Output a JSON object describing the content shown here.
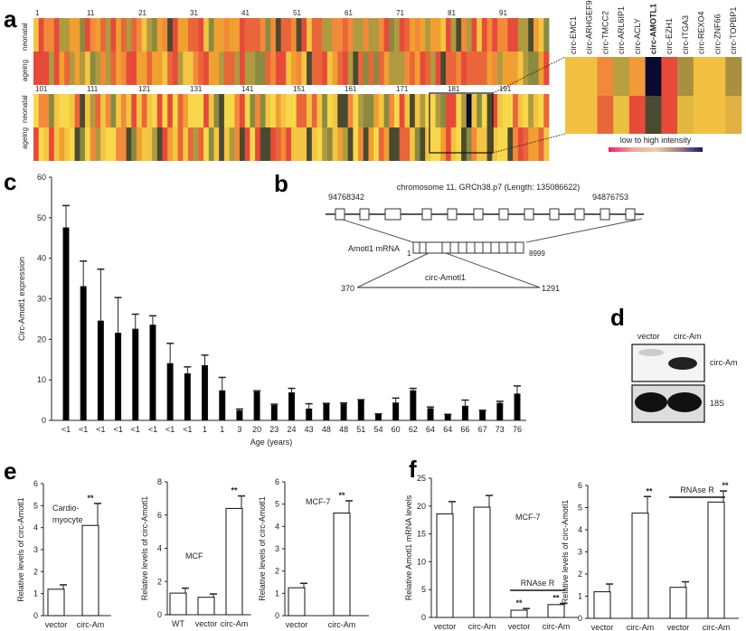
{
  "panel_labels": {
    "a": "a",
    "b": "b",
    "c": "c",
    "d": "d",
    "e": "e",
    "f": "f"
  },
  "heatmap": {
    "row_labels": [
      "neonatal",
      "ageing"
    ],
    "top_ticks": [
      "1",
      "11",
      "21",
      "31",
      "41",
      "51",
      "61",
      "71",
      "81",
      "91"
    ],
    "bottom_ticks": [
      "101",
      "111",
      "121",
      "131",
      "141",
      "151",
      "161",
      "171",
      "181",
      "191"
    ],
    "palette": [
      "#f4c542",
      "#f0a030",
      "#e8663a",
      "#e84a3a",
      "#b09a40",
      "#8a8a40",
      "#4a4a30",
      "#f7d84a",
      "#f28a3a"
    ],
    "zoom_columns": [
      "circ-EMC1",
      "circ-ARHGEF9",
      "circ-TMCC2",
      "circ-ARL6IP1",
      "circ-ACLY",
      "circ-AMOTL1",
      "circ-EZH1",
      "circ-ITGA3",
      "circ-REXO4",
      "circ-ZNF66",
      "circ-TOPBP1"
    ],
    "zoom_highlight": "circ-AMOTL1",
    "zoom_colors_neonatal": [
      "#f2c040",
      "#f2c040",
      "#f08a3a",
      "#b8a040",
      "#f09a3a",
      "#0a0a30",
      "#e84a38",
      "#a89040",
      "#f2c040",
      "#f2c040",
      "#a89040"
    ],
    "zoom_colors_ageing": [
      "#f2c040",
      "#f2c040",
      "#e8663a",
      "#e8c040",
      "#e84a38",
      "#4a4a30",
      "#e84a38",
      "#e0b840",
      "#f2c040",
      "#f2c040",
      "#e0b040"
    ],
    "legend_label": "low to high intensity",
    "legend_colors": [
      "#e8206a",
      "#f0a0a0",
      "#f0d0a0",
      "#a08080",
      "#201870"
    ]
  },
  "gene_diagram": {
    "title": "chromosome 11, GRCh38.p7 (Length: 135086622)",
    "start": "94768342",
    "end": "94876753",
    "mrna_label": "Amotl1 mRNA",
    "mrna_start": "1",
    "mrna_end": "8999",
    "circ_label": "circ-Amotl1",
    "circ_start": "370",
    "circ_end": "1291"
  },
  "blot": {
    "lanes": [
      "vector",
      "circ-Am"
    ],
    "bands": [
      "circ-Am",
      "18S"
    ]
  },
  "chart_data": [
    {
      "id": "c",
      "type": "bar",
      "xlabel": "Age (years)",
      "ylabel": "Circ-Amotl1 expression",
      "ylim": [
        0,
        60
      ],
      "yticks": [
        "0",
        "10",
        "20",
        "30",
        "40",
        "50",
        "60"
      ],
      "categories": [
        "<1",
        "<1",
        "<1",
        "<1",
        "<1",
        "<1",
        "<1",
        "<1",
        "1",
        "1",
        "3",
        "20",
        "23",
        "24",
        "43",
        "48",
        "48",
        "51",
        "54",
        "60",
        "62",
        "64",
        "64",
        "66",
        "67",
        "73",
        "76"
      ],
      "values": [
        47.5,
        33,
        24.5,
        21.5,
        22.5,
        23.5,
        14,
        11.5,
        13.5,
        7.3,
        2.4,
        7,
        3.7,
        6.8,
        2.8,
        4,
        4,
        5,
        1.5,
        4.3,
        7.3,
        2.9,
        1.4,
        3.5,
        2.3,
        4.2,
        6.5
      ],
      "errors": [
        5.5,
        6.3,
        12.8,
        8.8,
        3.7,
        2.3,
        5,
        1.7,
        2.6,
        3.3,
        0.4,
        0.3,
        0.3,
        1.1,
        1.3,
        0.2,
        0.3,
        0.1,
        0.1,
        1.2,
        0.6,
        0.4,
        0.1,
        1.5,
        0.2,
        0.5,
        2
      ]
    },
    {
      "id": "e1",
      "type": "bar",
      "ylabel": "Relative levels of circ-Amotl1",
      "ylim": [
        0,
        6
      ],
      "yticks": [
        "0",
        "1",
        "2",
        "3",
        "4",
        "5",
        "6"
      ],
      "annotation": "Cardio-",
      "annotation2": "myocyte",
      "categories": [
        "vector",
        "circ-Am"
      ],
      "values": [
        1.2,
        4.1
      ],
      "errors": [
        0.2,
        1.0
      ],
      "sig": [
        "",
        "**"
      ]
    },
    {
      "id": "e2",
      "type": "bar",
      "ylabel": "Relative levels of circ-Amotl1",
      "ylim": [
        0,
        8
      ],
      "yticks": [
        "0",
        "2",
        "4",
        "6",
        "8"
      ],
      "annotation": "MCF",
      "categories": [
        "WT",
        "vector",
        "circ-Am"
      ],
      "values": [
        1.3,
        1.05,
        6.4
      ],
      "errors": [
        0.3,
        0.2,
        0.75
      ],
      "sig": [
        "",
        "",
        "**"
      ]
    },
    {
      "id": "e3",
      "type": "bar",
      "ylabel": "Relative levels of circ-Amotl1",
      "ylim": [
        0,
        6
      ],
      "yticks": [
        "0",
        "1",
        "2",
        "3",
        "4",
        "5",
        "6"
      ],
      "annotation": "MCF-7",
      "categories": [
        "vector",
        "circ-Am"
      ],
      "values": [
        1.25,
        4.6
      ],
      "errors": [
        0.2,
        0.55
      ],
      "sig": [
        "",
        "**"
      ]
    },
    {
      "id": "f1",
      "type": "bar",
      "ylabel": "Relative Amotl1 mRNA levels",
      "ylim": [
        0,
        25
      ],
      "yticks": [
        "0",
        "5",
        "10",
        "15",
        "20",
        "25"
      ],
      "annotation": "MCF-7",
      "bracket": "RNAse R",
      "categories": [
        "vector",
        "circ-Am",
        "vector",
        "circ-Am"
      ],
      "values": [
        18.6,
        19.8,
        1.3,
        2.3
      ],
      "errors": [
        2.2,
        2.1,
        0.3,
        0.2
      ],
      "sig": [
        "",
        "",
        "**",
        "**"
      ]
    },
    {
      "id": "f2",
      "type": "bar",
      "ylabel": "Relative levels of circ-Amotl1",
      "ylim": [
        0,
        6
      ],
      "yticks": [
        "0",
        "1",
        "2",
        "3",
        "4",
        "5",
        "6"
      ],
      "bracket": "RNAse R",
      "categories": [
        "vector",
        "circ-Am",
        "vector",
        "circ-Am"
      ],
      "values": [
        1.2,
        4.75,
        1.4,
        5.25
      ],
      "errors": [
        0.35,
        0.75,
        0.25,
        0.5
      ],
      "sig": [
        "",
        "**",
        "",
        "**"
      ]
    }
  ]
}
